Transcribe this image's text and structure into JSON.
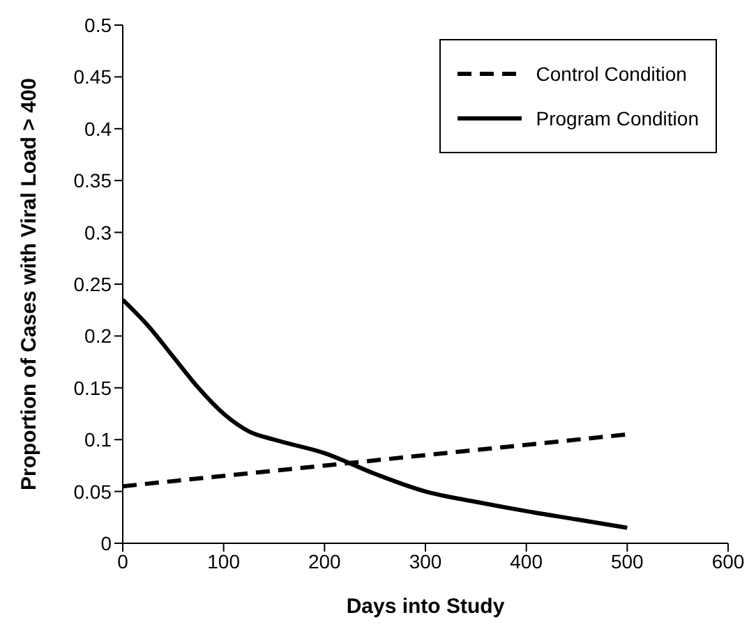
{
  "chart_data": {
    "type": "line",
    "xlabel": "Days into Study",
    "ylabel": "Proportion of Cases with Viral Load > 400",
    "xlim": [
      0,
      600
    ],
    "xticks": [
      0,
      100,
      200,
      300,
      400,
      500,
      600
    ],
    "ylim": [
      0,
      0.5
    ],
    "yticks": [
      0,
      0.05,
      0.1,
      0.15,
      0.2,
      0.25,
      0.3,
      0.35,
      0.4,
      0.45,
      0.5
    ],
    "grid": false,
    "legend": "top right",
    "marker": "none",
    "series": [
      {
        "name": "Control Condition",
        "color": "#000000",
        "line_style": "dashed",
        "x": [
          0,
          500
        ],
        "values": [
          0.055,
          0.105
        ]
      },
      {
        "name": "Program Condition",
        "color": "#000000",
        "line_style": "solid",
        "x": [
          0,
          25,
          50,
          75,
          100,
          125,
          150,
          200,
          250,
          300,
          350,
          400,
          450,
          500
        ],
        "values": [
          0.235,
          0.21,
          0.18,
          0.15,
          0.125,
          0.108,
          0.1,
          0.087,
          0.067,
          0.05,
          0.04,
          0.031,
          0.023,
          0.015
        ]
      }
    ]
  }
}
